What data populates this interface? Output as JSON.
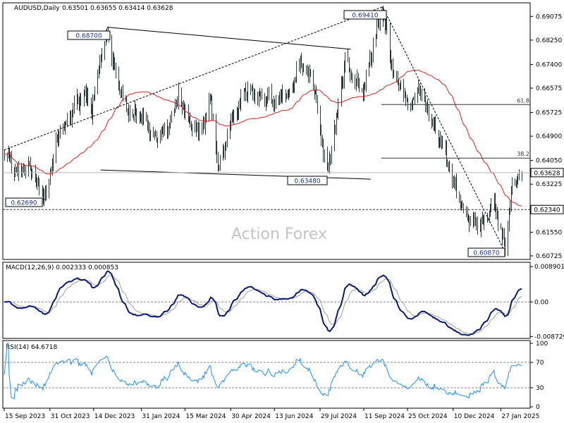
{
  "window": {
    "symbol": "AUDUSD,Daily",
    "ohlc": "0.63501 0.63655 0.63414 0.63628"
  },
  "watermark": "Action Forex",
  "colors": {
    "bars": "#2a3a3a",
    "sma": "#e02020",
    "macd": "#0a1a7a",
    "signal": "#a0a0a0",
    "rsi": "#1e90ff",
    "callout_text": "#1a2f8a"
  },
  "labels": {
    "high_1": "0.68700",
    "high_2": "0.69410",
    "low_1": "0.62690",
    "low_2": "0.63480",
    "low_3": "0.60870",
    "fib_618": "61.8",
    "fib_382": "38.2",
    "current_price": "0.63628",
    "support_level": "0.62340"
  },
  "chart_data": [
    {
      "type": "line",
      "title": "AUDUSD,Daily",
      "x_tick_labels": [
        "15 Sep 2023",
        "31 Oct 2023",
        "14 Dec 2023",
        "31 Jan 2024",
        "15 Mar 2024",
        "30 Apr 2024",
        "13 Jun 2024",
        "29 Jul 2024",
        "11 Sep 2024",
        "25 Oct 2024",
        "10 Dec 2024",
        "27 Jan 2025"
      ],
      "y_tick_labels": [
        "0.69075",
        "0.68250",
        "0.67400",
        "0.66575",
        "0.65725",
        "0.64900",
        "0.64050",
        "0.63225",
        "0.62400",
        "0.61550",
        "0.60725"
      ],
      "ylim": [
        0.606,
        0.6955
      ],
      "series": [
        {
          "key": "close",
          "points": [
            [
              "2023-09-15",
              0.644
            ],
            [
              "2023-09-27",
              0.636
            ],
            [
              "2023-10-10",
              0.638
            ],
            [
              "2023-10-26",
              0.627
            ],
            [
              "2023-11-06",
              0.648
            ],
            [
              "2023-11-20",
              0.656
            ],
            [
              "2023-12-04",
              0.664
            ],
            [
              "2023-12-12",
              0.658
            ],
            [
              "2023-12-20",
              0.675
            ],
            [
              "2023-12-28",
              0.686
            ],
            [
              "2024-01-05",
              0.669
            ],
            [
              "2024-01-17",
              0.657
            ],
            [
              "2024-02-01",
              0.655
            ],
            [
              "2024-02-13",
              0.649
            ],
            [
              "2024-02-28",
              0.652
            ],
            [
              "2024-03-08",
              0.664
            ],
            [
              "2024-03-20",
              0.653
            ],
            [
              "2024-04-01",
              0.651
            ],
            [
              "2024-04-09",
              0.662
            ],
            [
              "2024-04-18",
              0.637
            ],
            [
              "2024-04-30",
              0.654
            ],
            [
              "2024-05-15",
              0.665
            ],
            [
              "2024-05-28",
              0.664
            ],
            [
              "2024-06-10",
              0.662
            ],
            [
              "2024-06-26",
              0.664
            ],
            [
              "2024-07-10",
              0.675
            ],
            [
              "2024-07-22",
              0.668
            ],
            [
              "2024-08-05",
              0.635
            ],
            [
              "2024-08-14",
              0.656
            ],
            [
              "2024-08-23",
              0.675
            ],
            [
              "2024-09-10",
              0.664
            ],
            [
              "2024-09-24",
              0.686
            ],
            [
              "2024-09-30",
              0.692
            ],
            [
              "2024-10-10",
              0.673
            ],
            [
              "2024-10-25",
              0.66
            ],
            [
              "2024-11-07",
              0.665
            ],
            [
              "2024-11-22",
              0.651
            ],
            [
              "2024-12-05",
              0.64
            ],
            [
              "2024-12-20",
              0.622
            ],
            [
              "2025-01-02",
              0.619
            ],
            [
              "2025-01-10",
              0.618
            ],
            [
              "2025-01-20",
              0.626
            ],
            [
              "2025-01-31",
              0.61
            ],
            [
              "2025-02-07",
              0.632
            ],
            [
              "2025-02-17",
              0.6362
            ]
          ]
        },
        {
          "key": "sma",
          "name": ""
        }
      ],
      "annotations": [
        {
          "date": "2023-12-28",
          "value": 0.687,
          "label": "0.68700"
        },
        {
          "date": "2024-09-30",
          "value": 0.6941,
          "label": "0.69410"
        },
        {
          "date": "2023-10-26",
          "value": 0.6269,
          "label": "0.62690"
        },
        {
          "date": "2024-08-05",
          "value": 0.6348,
          "label": "0.63480"
        },
        {
          "date": "2025-01-31",
          "value": 0.6087,
          "label": "0.60870"
        }
      ],
      "levels": [
        {
          "value": 0.66003,
          "label": "61.8"
        },
        {
          "value": 0.64136,
          "label": "38.2"
        },
        {
          "value": 0.63628,
          "label": "0.63628"
        },
        {
          "value": 0.6234,
          "label": "0.62340"
        }
      ],
      "trendlines": [
        {
          "from": [
            "2023-09-15",
            0.6442
          ],
          "to": [
            "2024-09-30",
            0.6941
          ]
        },
        {
          "from": [
            "2023-12-28",
            0.687
          ],
          "to": [
            "2024-08-29",
            0.6793
          ]
        },
        {
          "from": [
            "2023-12-21",
            0.6372
          ],
          "to": [
            "2024-09-18",
            0.634
          ]
        },
        {
          "from": [
            "2024-09-30",
            0.6941
          ],
          "to": [
            "2025-01-31",
            0.6087
          ]
        }
      ]
    },
    {
      "type": "line",
      "title": "MACD(12,26,9) 0.002333 0.000853",
      "y_tick_labels": [
        "0.008901",
        "0.00",
        "-0.008729"
      ],
      "ylim": [
        -0.0092,
        0.01
      ],
      "series": [
        {
          "key": "macd",
          "last": 0.002333
        },
        {
          "key": "signal",
          "last": 0.000853
        }
      ]
    },
    {
      "type": "line",
      "title": "RSI(14) 64.6718",
      "y_tick_labels": [
        "100",
        "70",
        "30",
        "0"
      ],
      "ylim": [
        0,
        100
      ],
      "levels": [
        70,
        30
      ],
      "series": [
        {
          "key": "rsi",
          "last": 64.6718
        }
      ]
    }
  ]
}
